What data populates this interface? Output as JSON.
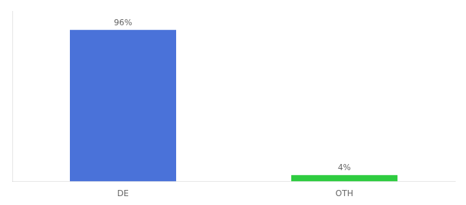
{
  "chart_data": {
    "type": "bar",
    "categories": [
      "DE",
      "OTH"
    ],
    "values": [
      96,
      4
    ],
    "value_labels": [
      "96%",
      "4%"
    ],
    "colors": [
      "#4a72d9",
      "#2ecc40"
    ],
    "ylim": [
      0,
      108
    ],
    "grid": false,
    "data_labels": true,
    "tick_labels": "x"
  }
}
